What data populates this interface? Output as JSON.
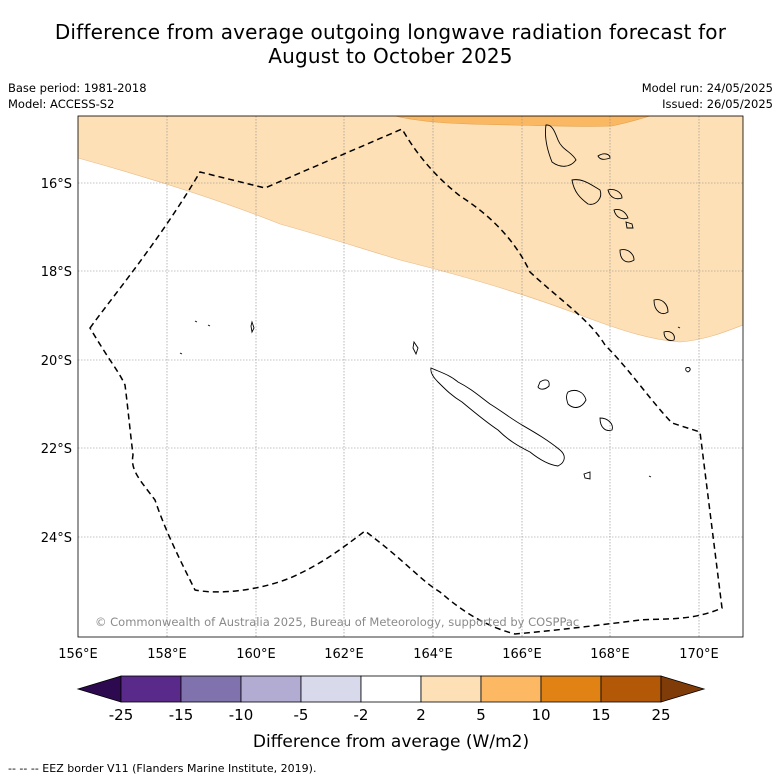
{
  "title": {
    "line1": "Difference from average outgoing longwave radiation forecast for",
    "line2": "August to October 2025"
  },
  "meta_left": {
    "base_period": "Base period: 1981-2018",
    "model": "Model: ACCESS-S2"
  },
  "meta_right": {
    "model_run": "Model run: 24/05/2025",
    "issued": "Issued: 26/05/2025"
  },
  "map": {
    "lon_ticks": [
      "156°E",
      "158°E",
      "160°E",
      "162°E",
      "164°E",
      "166°E",
      "168°E",
      "170°E"
    ],
    "lat_ticks": [
      "16°S",
      "18°S",
      "20°S",
      "22°S",
      "24°S"
    ],
    "extent": {
      "lon_min": 156,
      "lon_max": 171,
      "lat_min": -26.1,
      "lat_max": -14.5
    },
    "gridlines": true,
    "copyright": "© Commonwealth of Australia 2025, Bureau of Meteorology, supported by COSPPac",
    "anomaly_regions": [
      {
        "category": "2 to 5",
        "color": "#fde0b6"
      },
      {
        "category": "5 to 10",
        "color": "#fbb862"
      }
    ]
  },
  "colorbar": {
    "ticks": [
      "-25",
      "-15",
      "-10",
      "-5",
      "-2",
      "2",
      "5",
      "10",
      "15",
      "25"
    ],
    "colors": [
      "#2d0a4f",
      "#5a2a8a",
      "#8073ad",
      "#b2abd2",
      "#d8daeb",
      "#ffffff",
      "#fee0b6",
      "#fdb863",
      "#e08214",
      "#b35806",
      "#7f3b08"
    ],
    "label": "Difference from average (W/m2)"
  },
  "footer": "--  --  -- EEZ border V11 (Flanders Marine Institute, 2019)."
}
